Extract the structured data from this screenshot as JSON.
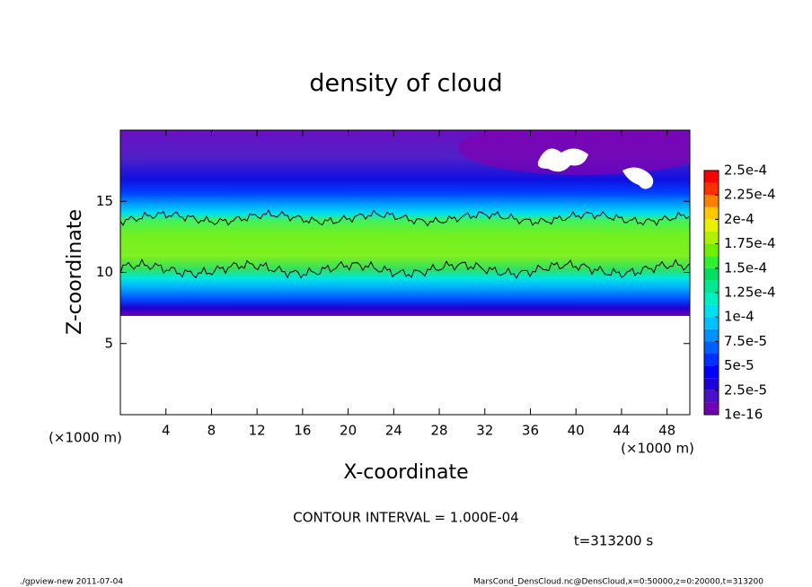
{
  "chart_data": {
    "type": "contour",
    "title": "density of cloud",
    "xlabel": "X-coordinate",
    "ylabel": "Z-coordinate",
    "x_unit": "(×1000 m)",
    "xlim": [
      0,
      50
    ],
    "ylim": [
      0,
      20
    ],
    "xticks": [
      4,
      8,
      12,
      16,
      20,
      24,
      28,
      32,
      36,
      40,
      44,
      48
    ],
    "yticks": [
      5,
      10,
      15
    ],
    "colorbar": {
      "levels": [
        {
          "value": 1e-16,
          "label": "1e-16"
        },
        {
          "value": 2.5e-05,
          "label": "2.5e-5"
        },
        {
          "value": 5e-05,
          "label": "5e-5"
        },
        {
          "value": 7.5e-05,
          "label": "7.5e-5"
        },
        {
          "value": 0.0001,
          "label": "1e-4"
        },
        {
          "value": 0.000125,
          "label": "1.25e-4"
        },
        {
          "value": 0.00015,
          "label": "1.5e-4"
        },
        {
          "value": 0.000175,
          "label": "1.75e-4"
        },
        {
          "value": 0.0002,
          "label": "2e-4"
        },
        {
          "value": 0.000225,
          "label": "2.25e-4"
        },
        {
          "value": 0.00025,
          "label": "2.5e-4"
        }
      ],
      "colors": [
        "#7000b0",
        "#4a10c8",
        "#2000d8",
        "#0000ff",
        "#0030ff",
        "#0060ff",
        "#0090ff",
        "#00c0ff",
        "#00e0f0",
        "#00f0c0",
        "#00e890",
        "#00e060",
        "#30f030",
        "#70f000",
        "#b0f000",
        "#e8f000",
        "#ffc800",
        "#ff8000",
        "#ff3000",
        "#ff0000"
      ]
    },
    "contour_interval": "CONTOUR INTERVAL = 1.000E-04",
    "time_label": "t=313200 s",
    "footer_left": "./gpview-new  2011-07-04",
    "footer_right": "MarsCond_DensCloud.nc@DensCloud,x=0:50000,z=0:20000,t=313200"
  }
}
